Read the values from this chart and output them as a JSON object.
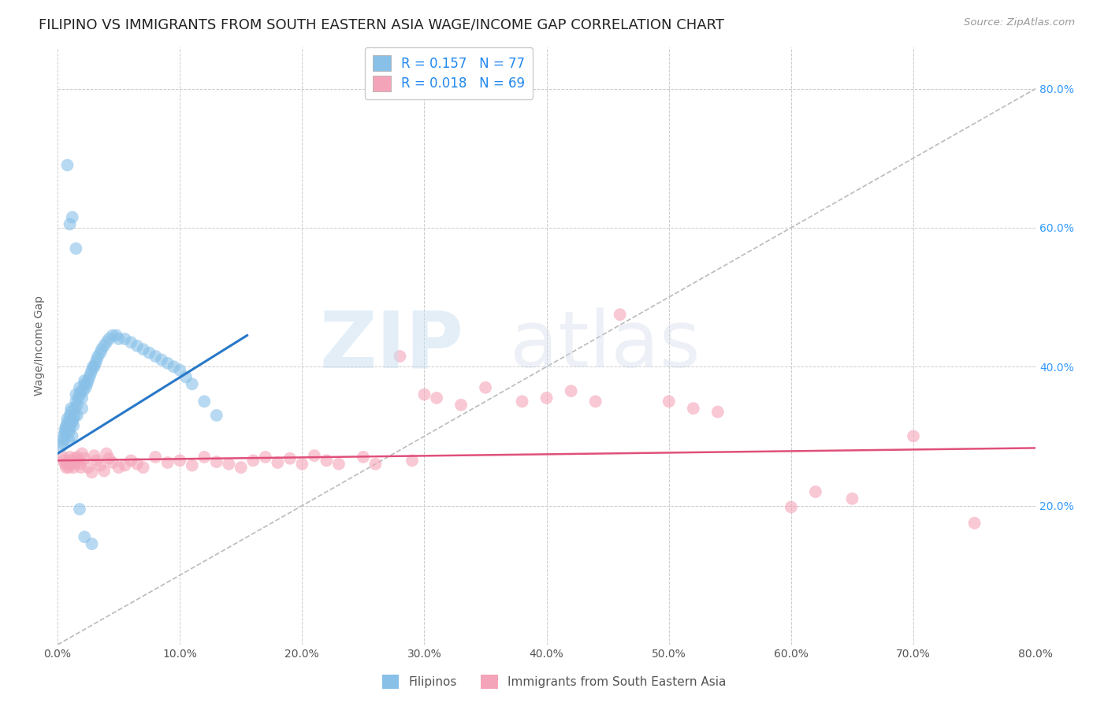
{
  "title": "FILIPINO VS IMMIGRANTS FROM SOUTH EASTERN ASIA WAGE/INCOME GAP CORRELATION CHART",
  "source": "Source: ZipAtlas.com",
  "ylabel": "Wage/Income Gap",
  "xlim": [
    0.0,
    0.8
  ],
  "ylim": [
    0.0,
    0.86
  ],
  "xticks": [
    0.0,
    0.1,
    0.2,
    0.3,
    0.4,
    0.5,
    0.6,
    0.7,
    0.8
  ],
  "ytick_labels_right": [
    "20.0%",
    "40.0%",
    "60.0%",
    "80.0%"
  ],
  "yticks_right": [
    0.2,
    0.4,
    0.6,
    0.8
  ],
  "series1_label": "Filipinos",
  "series2_label": "Immigrants from South Eastern Asia",
  "series1_color": "#88c0e8",
  "series2_color": "#f4a4b8",
  "series1_R": 0.157,
  "series1_N": 77,
  "series2_R": 0.018,
  "series2_N": 69,
  "series1_line_color": "#2878c8",
  "series2_line_color": "#e0507a",
  "diagonal_color": "#bbbbbb",
  "legend_text_color": "#2288ee",
  "background_color": "#ffffff",
  "grid_color": "#cccccc",
  "title_fontsize": 13,
  "axis_label_fontsize": 10,
  "tick_fontsize": 10,
  "series1_x": [
    0.003,
    0.004,
    0.005,
    0.005,
    0.006,
    0.006,
    0.007,
    0.007,
    0.008,
    0.008,
    0.009,
    0.009,
    0.01,
    0.01,
    0.01,
    0.01,
    0.011,
    0.011,
    0.012,
    0.012,
    0.013,
    0.013,
    0.014,
    0.014,
    0.015,
    0.015,
    0.016,
    0.016,
    0.017,
    0.018,
    0.018,
    0.019,
    0.02,
    0.02,
    0.021,
    0.022,
    0.022,
    0.023,
    0.024,
    0.025,
    0.026,
    0.027,
    0.028,
    0.029,
    0.03,
    0.031,
    0.032,
    0.033,
    0.035,
    0.036,
    0.038,
    0.04,
    0.042,
    0.045,
    0.048,
    0.05,
    0.055,
    0.06,
    0.065,
    0.07,
    0.075,
    0.08,
    0.085,
    0.09,
    0.095,
    0.1,
    0.105,
    0.11,
    0.12,
    0.13,
    0.008,
    0.01,
    0.012,
    0.015,
    0.018,
    0.022,
    0.028
  ],
  "series1_y": [
    0.285,
    0.29,
    0.295,
    0.3,
    0.305,
    0.31,
    0.31,
    0.315,
    0.32,
    0.325,
    0.295,
    0.305,
    0.31,
    0.315,
    0.32,
    0.33,
    0.335,
    0.34,
    0.3,
    0.32,
    0.315,
    0.325,
    0.33,
    0.34,
    0.35,
    0.36,
    0.33,
    0.345,
    0.355,
    0.36,
    0.37,
    0.365,
    0.34,
    0.355,
    0.365,
    0.375,
    0.38,
    0.37,
    0.375,
    0.38,
    0.385,
    0.39,
    0.395,
    0.4,
    0.4,
    0.405,
    0.41,
    0.415,
    0.42,
    0.425,
    0.43,
    0.435,
    0.44,
    0.445,
    0.445,
    0.44,
    0.44,
    0.435,
    0.43,
    0.425,
    0.42,
    0.415,
    0.41,
    0.405,
    0.4,
    0.395,
    0.385,
    0.375,
    0.35,
    0.33,
    0.69,
    0.605,
    0.615,
    0.57,
    0.195,
    0.155,
    0.145
  ],
  "series2_x": [
    0.004,
    0.005,
    0.006,
    0.007,
    0.008,
    0.009,
    0.01,
    0.011,
    0.012,
    0.013,
    0.014,
    0.015,
    0.016,
    0.017,
    0.018,
    0.019,
    0.02,
    0.022,
    0.025,
    0.028,
    0.03,
    0.032,
    0.035,
    0.038,
    0.04,
    0.042,
    0.045,
    0.05,
    0.055,
    0.06,
    0.065,
    0.07,
    0.08,
    0.09,
    0.1,
    0.11,
    0.12,
    0.13,
    0.14,
    0.15,
    0.16,
    0.17,
    0.18,
    0.19,
    0.2,
    0.21,
    0.22,
    0.23,
    0.25,
    0.26,
    0.28,
    0.29,
    0.3,
    0.31,
    0.33,
    0.35,
    0.38,
    0.4,
    0.42,
    0.44,
    0.46,
    0.5,
    0.52,
    0.54,
    0.6,
    0.62,
    0.65,
    0.7,
    0.75
  ],
  "series2_y": [
    0.27,
    0.265,
    0.26,
    0.255,
    0.26,
    0.255,
    0.27,
    0.265,
    0.26,
    0.255,
    0.268,
    0.262,
    0.27,
    0.265,
    0.26,
    0.255,
    0.275,
    0.268,
    0.255,
    0.248,
    0.272,
    0.265,
    0.258,
    0.25,
    0.275,
    0.268,
    0.262,
    0.255,
    0.258,
    0.265,
    0.26,
    0.255,
    0.27,
    0.262,
    0.265,
    0.258,
    0.27,
    0.263,
    0.26,
    0.255,
    0.265,
    0.27,
    0.262,
    0.268,
    0.26,
    0.272,
    0.265,
    0.26,
    0.27,
    0.26,
    0.415,
    0.265,
    0.36,
    0.355,
    0.345,
    0.37,
    0.35,
    0.355,
    0.365,
    0.35,
    0.475,
    0.35,
    0.34,
    0.335,
    0.198,
    0.22,
    0.21,
    0.3,
    0.175
  ],
  "blue_line_x": [
    0.0,
    0.155
  ],
  "blue_line_y": [
    0.275,
    0.445
  ],
  "pink_line_x": [
    0.0,
    0.8
  ],
  "pink_line_y": [
    0.265,
    0.283
  ]
}
